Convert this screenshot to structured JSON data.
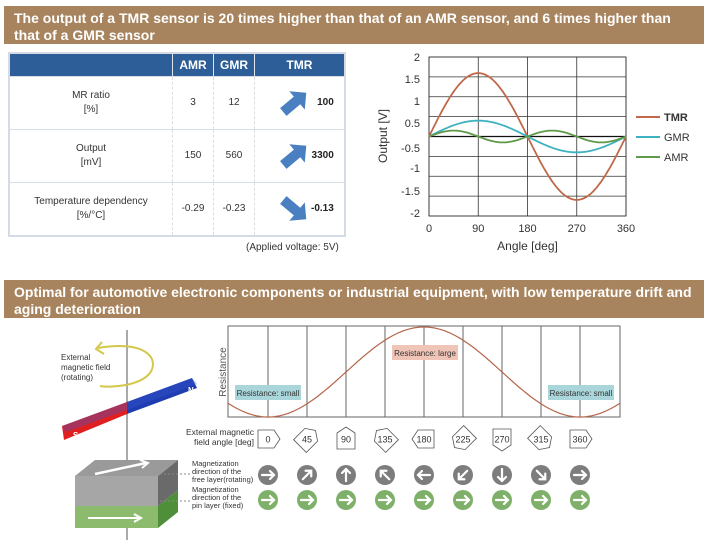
{
  "section1": {
    "title": "The output of a TMR sensor is 20 times higher than that of an AMR sensor, and 6 times higher than that of a GMR sensor",
    "table": {
      "headers": [
        "",
        "AMR",
        "GMR",
        "TMR"
      ],
      "rows": [
        {
          "label": "MR ratio",
          "unit": "[%]",
          "amr": "3",
          "gmr": "12",
          "tmr": "100",
          "trend": "up"
        },
        {
          "label": "Output",
          "unit": "[mV]",
          "amr": "150",
          "gmr": "560",
          "tmr": "3300",
          "trend": "up"
        },
        {
          "label": "Temperature dependency",
          "unit": "[%/°C]",
          "amr": "-0.29",
          "gmr": "-0.23",
          "tmr": "-0.13",
          "trend": "down"
        }
      ],
      "note": "(Applied voltage: 5V)",
      "arrow_color": "#4a7fc1"
    }
  },
  "chart_data": {
    "type": "line",
    "xlabel": "Angle [deg]",
    "ylabel": "Output [V]",
    "xlim": [
      0,
      360
    ],
    "ylim": [
      -2,
      2
    ],
    "x_ticks": [
      "0",
      "90",
      "180",
      "270",
      "360"
    ],
    "y_ticks": [
      "2",
      "1.5",
      "1",
      "0.5",
      "-0.5",
      "-1",
      "-1.5",
      "-2"
    ],
    "grid": true,
    "legend": "right",
    "series": [
      {
        "name": "TMR",
        "color": "#c0694a",
        "shape": "sine",
        "amplitude": 1.6,
        "period_deg": 360
      },
      {
        "name": "GMR",
        "color": "#3fb1c0",
        "shape": "sine",
        "amplitude": 0.4,
        "period_deg": 360
      },
      {
        "name": "AMR",
        "color": "#5f9a4a",
        "shape": "sine",
        "amplitude": 0.15,
        "period_deg": 180
      }
    ]
  },
  "section2": {
    "title": "Optimal for automotive electronic components or industrial equipment, with low temperature drift and aging deterioration",
    "field_label": [
      "External",
      "magnetic field",
      "(rotating)"
    ],
    "pole_n": "N",
    "pole_s": "S",
    "resistance_axis": "Resistance",
    "res_small": "Resistance: small",
    "res_large": "Resistance: large",
    "angle_label": [
      "External magnetic",
      "field angle  [deg]"
    ],
    "angles": [
      "0",
      "45",
      "90",
      "135",
      "180",
      "225",
      "270",
      "315",
      "360"
    ],
    "free_label": [
      "Magnetization",
      "direction of the",
      "free layer(rotating)"
    ],
    "pin_label": [
      "Magnetization",
      "direction of the",
      "pin layer (fixed)"
    ],
    "colors": {
      "free": "#7d7d7d",
      "pin": "#7fb069",
      "small_box": "#a9d6da",
      "large_box": "#f0c4b6"
    }
  }
}
